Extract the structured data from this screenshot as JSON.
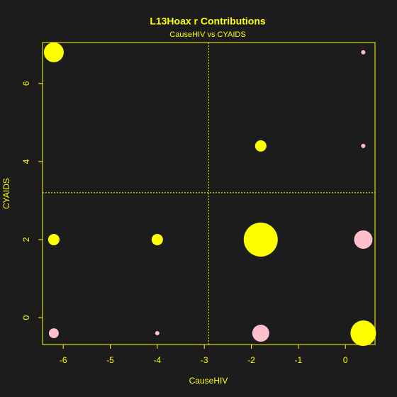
{
  "chart_data": {
    "type": "bubble",
    "title": "L13Hoax r Contributions",
    "subtitle": "CauseHIV vs CYAIDS",
    "x_label": "CauseHIV",
    "y_label": "CYAIDS",
    "x": [
      -6.2,
      0.38,
      -1.8,
      0.38,
      -6.2,
      -4.0,
      -1.8,
      0.38,
      -6.2,
      -4.0,
      -1.8,
      0.38
    ],
    "y": [
      6.8,
      6.8,
      4.4,
      4.4,
      2.0,
      2.0,
      2.0,
      2.0,
      -0.4,
      -0.4,
      -0.4,
      -0.4
    ],
    "sizes": [
      21.8,
      1,
      7.1,
      1,
      7.1,
      7.1,
      64,
      18.8,
      5.4,
      1,
      16,
      36
    ],
    "colors": [
      "#ffff00",
      "#ffc0cb",
      "#ffff00",
      "#ffc0cb",
      "#ffff00",
      "#ffff00",
      "#ffff00",
      "#ffc0cb",
      "#ffc0cb",
      "#ffc0cb",
      "#ffc0cb",
      "#ffff00"
    ],
    "xlim": [
      -6.44,
      0.63
    ],
    "ylim": [
      -0.69,
      7.05
    ],
    "xticks": [
      -6,
      -5,
      -4,
      -3,
      -2,
      -1,
      0
    ],
    "yticks": [
      0,
      2,
      4,
      6
    ],
    "vline": -2.91,
    "hline": 3.2,
    "axis_color": "#ffff00",
    "background": "#1c1c1c"
  }
}
